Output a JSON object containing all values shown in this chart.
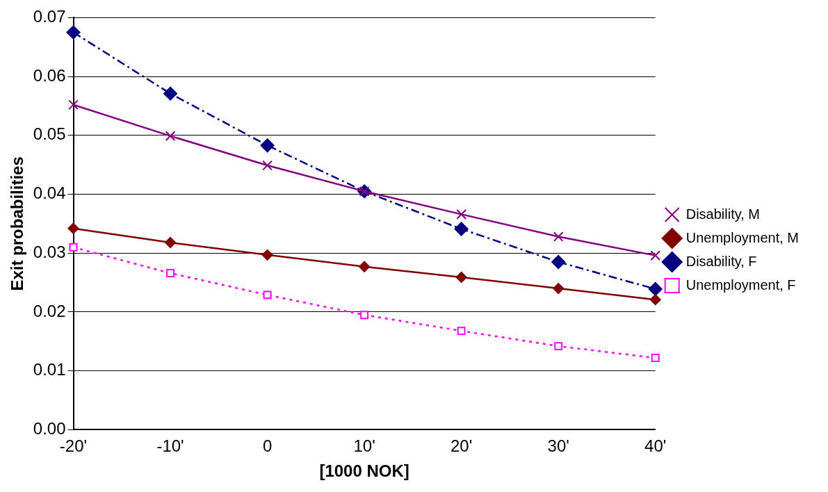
{
  "chart_data": {
    "type": "line",
    "xlabel": "[1000 NOK]",
    "ylabel": "Exit probabilities",
    "categories": [
      "-20'",
      "-10'",
      "0",
      "10'",
      "20'",
      "30'",
      "40'"
    ],
    "series": [
      {
        "name": "Disability, M",
        "color": "#800080",
        "marker": "cross",
        "line_style": "solid",
        "values": [
          0.0552,
          0.0499,
          0.0449,
          0.0405,
          0.0366,
          0.0328,
          0.0296
        ]
      },
      {
        "name": "Unemployment, M",
        "color": "#800000",
        "marker": "diamond",
        "line_style": "solid",
        "values": [
          0.0342,
          0.0318,
          0.0297,
          0.0277,
          0.0259,
          0.024,
          0.0221
        ]
      },
      {
        "name": "Disability, F",
        "color": "#000080",
        "marker": "diamond",
        "line_style": "dashed",
        "values": [
          0.0675,
          0.0571,
          0.0483,
          0.0405,
          0.0341,
          0.0285,
          0.0239
        ]
      },
      {
        "name": "Unemployment, F",
        "color": "#ff00ff",
        "marker": "square",
        "line_style": "dotted",
        "values": [
          0.031,
          0.0266,
          0.0229,
          0.0195,
          0.0168,
          0.0142,
          0.0122
        ]
      }
    ],
    "ylim": [
      0,
      0.07
    ],
    "yticks": [
      {
        "value": 0,
        "label": "0.00"
      },
      {
        "value": 0.01,
        "label": "0.01"
      },
      {
        "value": 0.02,
        "label": "0.02"
      },
      {
        "value": 0.03,
        "label": "0.03"
      },
      {
        "value": 0.04,
        "label": "0.04"
      },
      {
        "value": 0.05,
        "label": "0.05"
      },
      {
        "value": 0.06,
        "label": "0.06"
      },
      {
        "value": 0.07,
        "label": "0.07"
      }
    ],
    "grid": "y",
    "legend": "right"
  }
}
